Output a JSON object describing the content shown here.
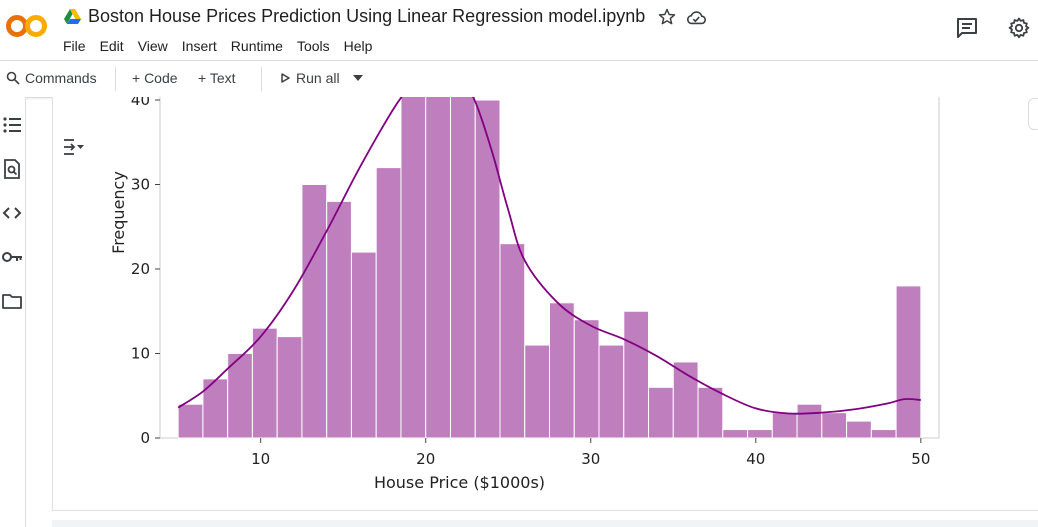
{
  "app": {
    "logo_text": "CO",
    "notebook_title": "Boston House Prices Prediction Using Linear Regression model.ipynb"
  },
  "menu": [
    "File",
    "Edit",
    "View",
    "Insert",
    "Runtime",
    "Tools",
    "Help"
  ],
  "toolbar": {
    "commands_label": "Commands",
    "code_label": "+ Code",
    "text_label": "+ Text",
    "run_all_label": "Run all"
  },
  "sidebar_icons": [
    "table-of-contents-icon",
    "find-replace-icon",
    "code-snippets-icon",
    "secrets-key-icon",
    "files-folder-icon"
  ],
  "colors": {
    "bar_fill": "#bf7fbf",
    "kde_line": "#800080",
    "logo_orange": "#F9AB00",
    "logo_dark_orange": "#E8710A"
  },
  "chart_data": {
    "type": "bar",
    "xlabel": "House Price ($1000s)",
    "ylabel": "Frequency",
    "xlim": [
      3.9,
      51.1
    ],
    "ylim": [
      0,
      40
    ],
    "xticks": [
      10,
      20,
      30,
      40,
      50
    ],
    "yticks": [
      0,
      10,
      20,
      30,
      40
    ],
    "bin_start": 5,
    "bin_width": 1.5,
    "values": [
      4,
      7,
      10,
      13,
      12,
      30,
      28,
      22,
      32,
      42,
      45,
      42,
      40,
      23,
      11,
      16,
      14,
      11,
      15,
      6,
      9,
      6,
      1,
      1,
      3,
      4,
      3,
      2,
      1,
      18
    ],
    "kde": {
      "x": [
        5,
        6.5,
        8,
        10,
        12,
        14,
        16,
        18,
        19,
        20,
        21,
        22,
        23,
        24,
        25,
        26,
        28,
        30,
        32,
        34,
        36,
        38,
        40,
        42,
        44,
        46,
        48,
        49,
        50
      ],
      "y": [
        3.6,
        5.5,
        8.2,
        12.0,
        17.5,
        24.5,
        32.0,
        38.8,
        41.5,
        43.5,
        44.2,
        43.2,
        39.8,
        34.0,
        27.0,
        21.0,
        16.0,
        13.3,
        11.7,
        9.7,
        7.3,
        5.2,
        3.5,
        2.9,
        3.0,
        3.4,
        4.1,
        4.6,
        4.5
      ]
    }
  }
}
